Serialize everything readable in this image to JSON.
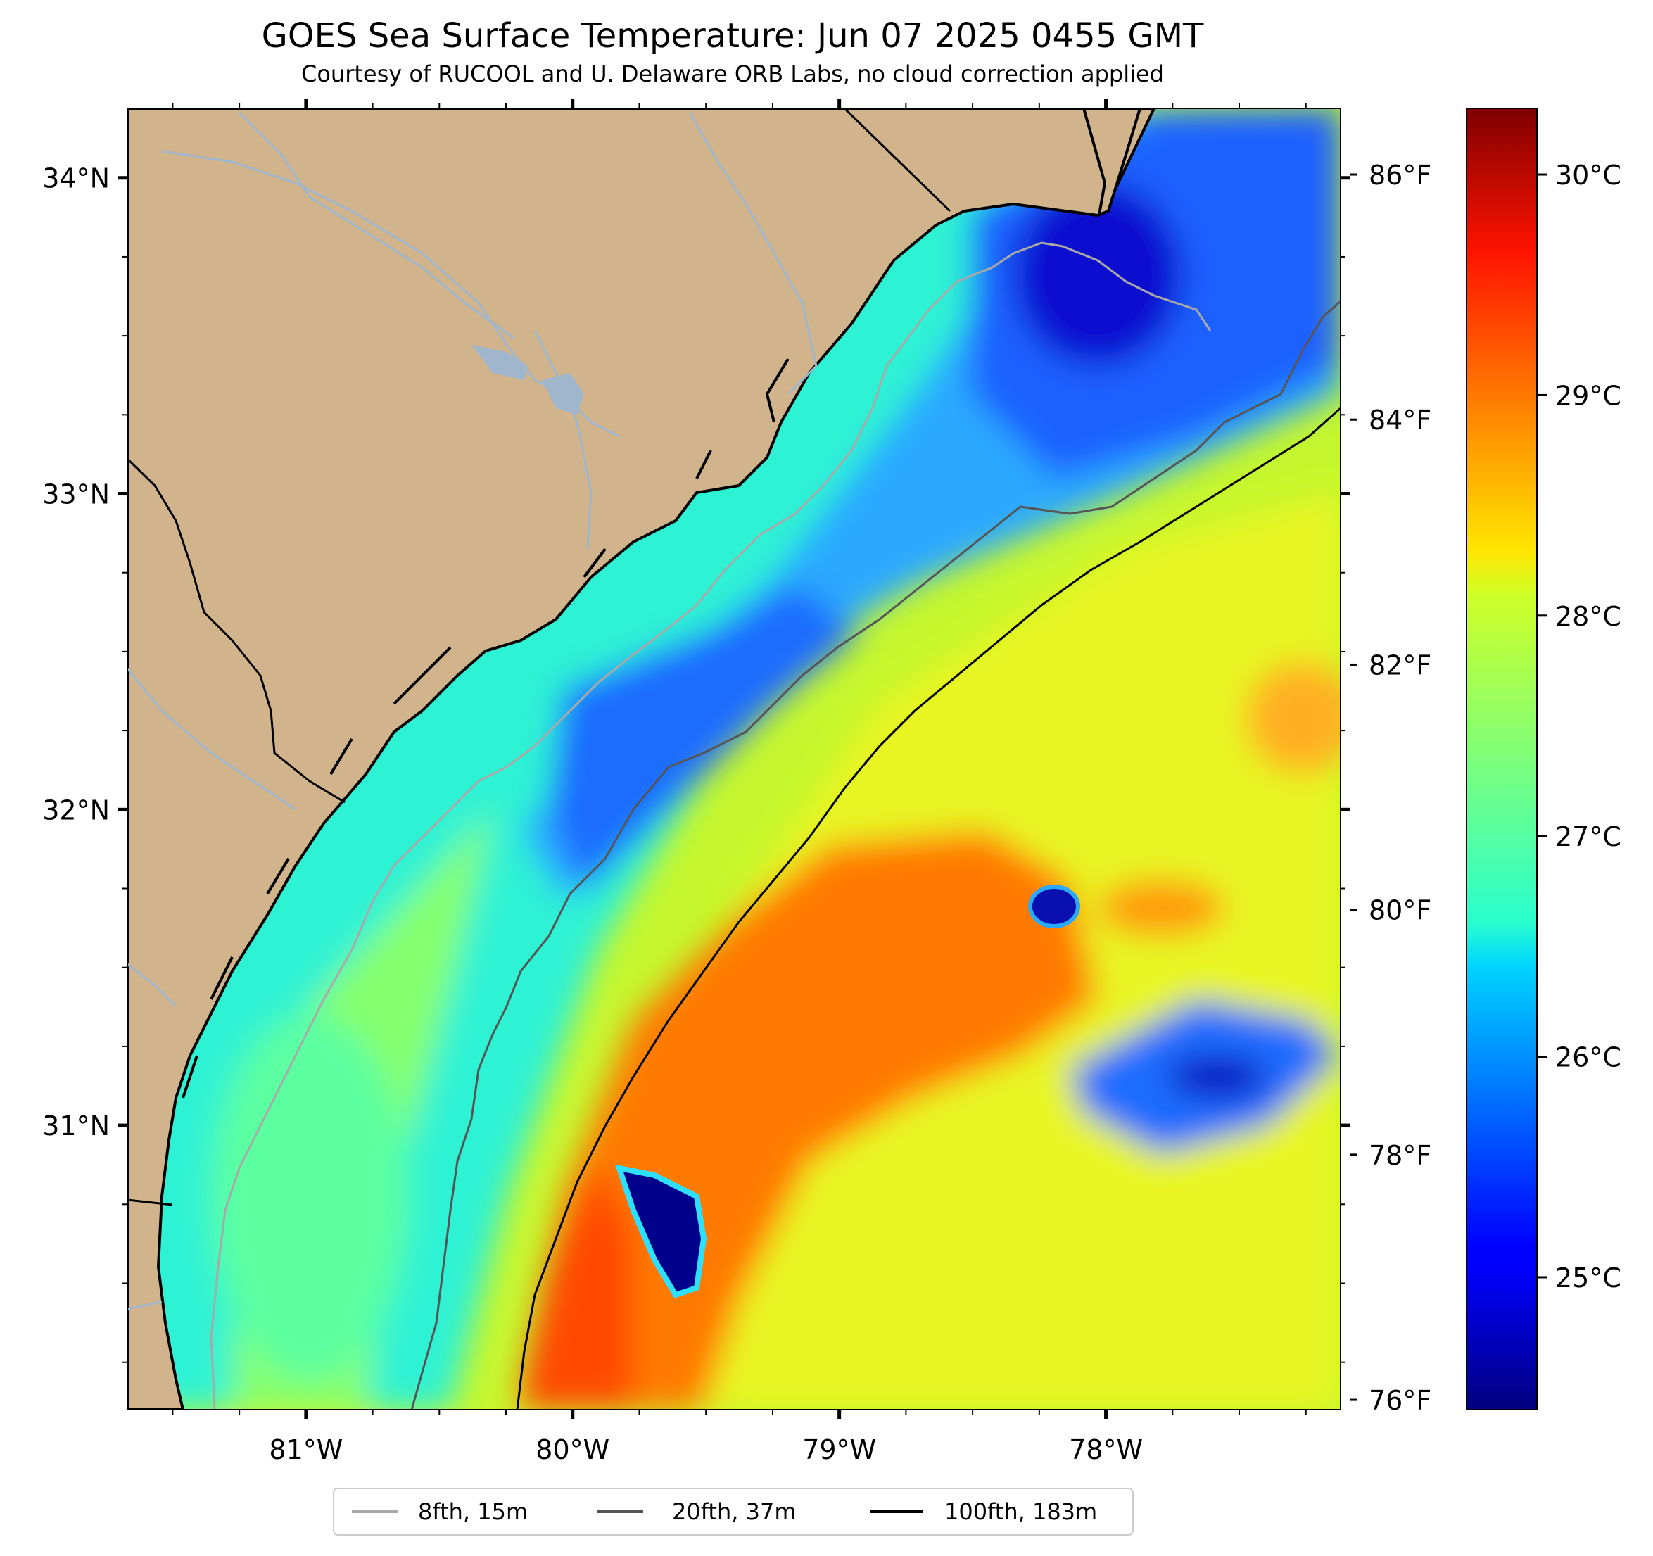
{
  "title": "GOES Sea Surface Temperature: Jun 07 2025 0455 GMT",
  "subtitle": "Courtesy of RUCOOL and U. Delaware ORB Labs, no cloud correction applied",
  "map": {
    "lon_range": [
      -81.67,
      -77.12
    ],
    "lat_range": [
      30.1,
      34.22
    ],
    "lon_ticks": [
      {
        "value": -81,
        "label": "81°W"
      },
      {
        "value": -80,
        "label": "80°W"
      },
      {
        "value": -79,
        "label": "79°W"
      },
      {
        "value": -78,
        "label": "78°W"
      }
    ],
    "lat_ticks": [
      {
        "value": 34,
        "label": "34°N"
      },
      {
        "value": 33,
        "label": "33°N"
      },
      {
        "value": 32,
        "label": "32°N"
      },
      {
        "value": 31,
        "label": "31°N"
      }
    ],
    "land_color": "#d2b48c",
    "river_color": "#9fb6cd"
  },
  "temperature_scale": {
    "colormap": "jet",
    "celsius_range": [
      24.4,
      30.3
    ],
    "fahrenheit_ticks": [
      {
        "value": 86,
        "label": "86°F"
      },
      {
        "value": 84,
        "label": "84°F"
      },
      {
        "value": 82,
        "label": "82°F"
      },
      {
        "value": 80,
        "label": "80°F"
      },
      {
        "value": 78,
        "label": "78°F"
      },
      {
        "value": 76,
        "label": "76°F"
      }
    ],
    "celsius_ticks": [
      {
        "value": 30,
        "label": "30°C"
      },
      {
        "value": 29,
        "label": "29°C"
      },
      {
        "value": 28,
        "label": "28°C"
      },
      {
        "value": 27,
        "label": "27°C"
      },
      {
        "value": 26,
        "label": "26°C"
      },
      {
        "value": 25,
        "label": "25°C"
      }
    ]
  },
  "legend": {
    "items": [
      {
        "label": "8fth, 15m",
        "color": "#a9a9a9"
      },
      {
        "label": "20fth, 37m",
        "color": "#555555"
      },
      {
        "label": "100fth, 183m",
        "color": "#000000"
      }
    ]
  }
}
